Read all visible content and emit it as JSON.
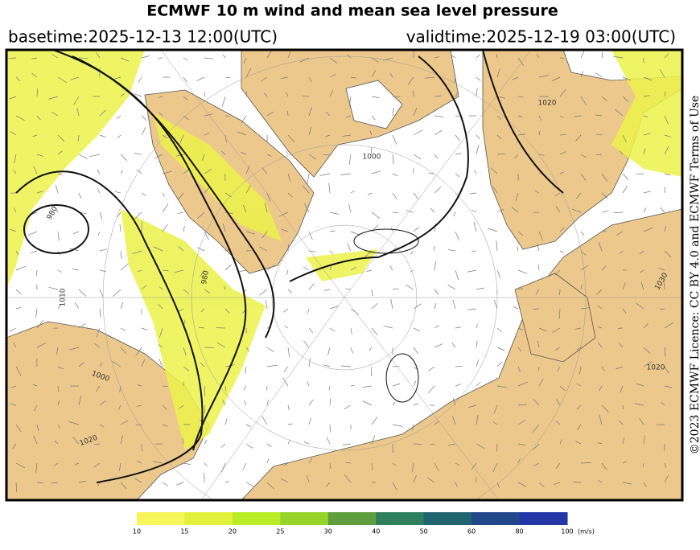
{
  "header": {
    "title": "ECMWF 10 m wind and mean sea level pressure",
    "basetime": "basetime:2025-12-13 12:00(UTC)",
    "validtime": "validtime:2025-12-19 03:00(UTC)"
  },
  "licence": "©2023 ECMWF Licence: CC BY 4.0 and ECMWF Terms of Use",
  "contour_labels": [
    "980",
    "1010",
    "980",
    "1000",
    "1020",
    "1030",
    "1020",
    "1000",
    "1020"
  ],
  "colorbar": {
    "ticks": [
      10,
      15,
      20,
      25,
      30,
      40,
      50,
      60,
      80,
      100
    ],
    "colors": [
      "#f6f65a",
      "#e2f23c",
      "#b9ee26",
      "#96d42a",
      "#5f9e3e",
      "#2f7e5c",
      "#216470",
      "#21478a",
      "#2236a8"
    ],
    "unit": "(m/s)"
  }
}
